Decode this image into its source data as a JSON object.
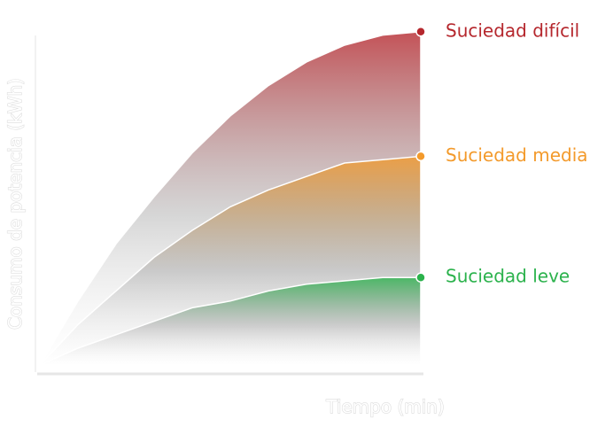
{
  "chart_data": {
    "type": "area",
    "x_label": "Tiempo (min)",
    "y_label": "Consumo de potencia (kWh)",
    "x": [
      0,
      1,
      2,
      3,
      4,
      5,
      6,
      7,
      8,
      9,
      10
    ],
    "xlim": [
      0,
      10
    ],
    "ylim": [
      0,
      100
    ],
    "series": [
      {
        "name": "Suciedad difícil",
        "color": "#b5272d",
        "values": [
          0,
          19,
          36,
          50,
          63,
          74,
          83,
          90,
          95,
          98,
          99
        ]
      },
      {
        "name": "Suciedad media",
        "color": "#f39a2b",
        "values": [
          0,
          12,
          22,
          32,
          40,
          47,
          52,
          56,
          60,
          61,
          62
        ]
      },
      {
        "name": "Suciedad leve",
        "color": "#2bb24c",
        "values": [
          0,
          5,
          9,
          13,
          17,
          19,
          22,
          24,
          25,
          26,
          26
        ]
      }
    ]
  }
}
